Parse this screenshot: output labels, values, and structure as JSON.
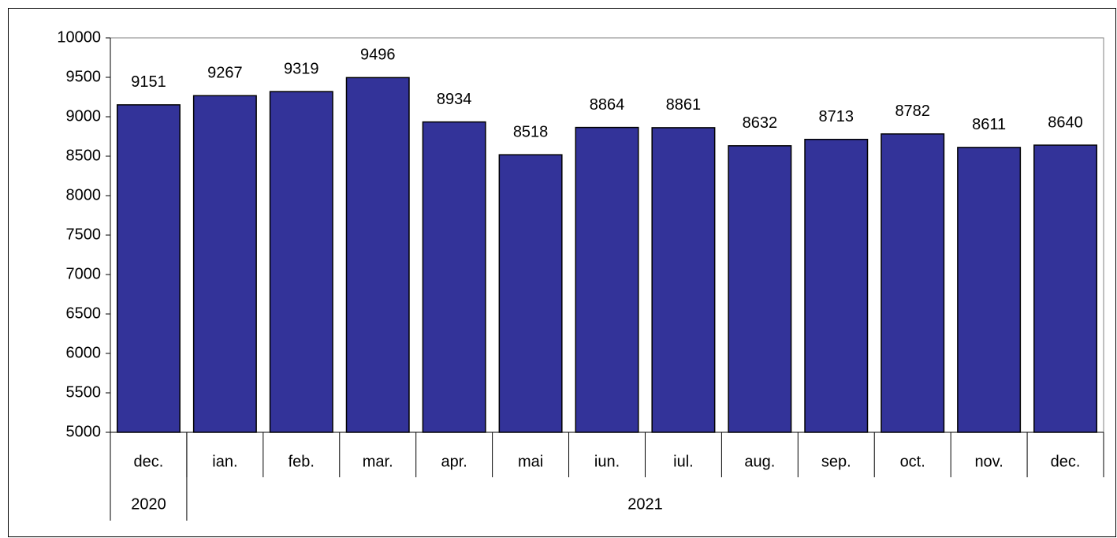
{
  "chart_data": {
    "type": "bar",
    "categories": [
      "dec.",
      "ian.",
      "feb.",
      "mar.",
      "apr.",
      "mai",
      "iun.",
      "iul.",
      "aug.",
      "sep.",
      "oct.",
      "nov.",
      "dec."
    ],
    "values": [
      9151,
      9267,
      9319,
      9496,
      8934,
      8518,
      8864,
      8861,
      8632,
      8713,
      8782,
      8611,
      8640
    ],
    "groups": [
      {
        "label": "2020",
        "count": 1
      },
      {
        "label": "2021",
        "count": 12
      }
    ],
    "color": "#333399",
    "ylim": [
      5000,
      10000
    ],
    "yticks": [
      5000,
      5500,
      6000,
      6500,
      7000,
      7500,
      8000,
      8500,
      9000,
      9500,
      10000
    ],
    "grid": false
  }
}
